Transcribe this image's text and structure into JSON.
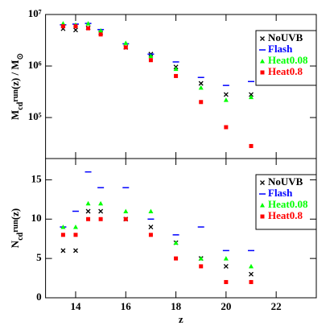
{
  "chart_data": [
    {
      "type": "scatter",
      "log_y": true,
      "ylabel": [
        {
          "text": "M"
        },
        {
          "text": "cd",
          "shift": "sub"
        },
        {
          "text": "run",
          "shift": "sup"
        },
        {
          "text": "(z) / M"
        },
        {
          "text": "⊙",
          "shift": "sub"
        }
      ],
      "x": [
        13.5,
        14,
        14.5,
        15,
        16,
        17,
        18,
        19,
        20,
        21
      ],
      "xlim": [
        12.8,
        23.6
      ],
      "xticks": [
        14,
        16,
        18,
        20,
        22
      ],
      "ylim": [
        16000,
        10000000
      ],
      "yticks": [
        {
          "value": 100000,
          "label": "10⁵"
        },
        {
          "value": 1000000,
          "label": "10⁶"
        },
        {
          "value": 10000000,
          "label": "10⁷"
        }
      ],
      "legend": "upper right",
      "series": [
        {
          "name": "NoUVB",
          "color": "#000000",
          "marker": "cross",
          "values": [
            5300000,
            5000000,
            5500000,
            4400000,
            2300000,
            1700000,
            960000,
            460000,
            280000,
            280000
          ]
        },
        {
          "name": "Flash",
          "color": "#0000ff",
          "marker": "dash",
          "values": [
            6300000,
            6500000,
            6700000,
            5100000,
            2700000,
            1700000,
            1200000,
            600000,
            420000,
            500000
          ]
        },
        {
          "name": "Heat0.08",
          "color": "#00ff00",
          "marker": "triangle",
          "values": [
            6700000,
            6300000,
            6700000,
            4900000,
            2800000,
            1560000,
            880000,
            380000,
            220000,
            250000
          ]
        },
        {
          "name": "Heat0.8",
          "color": "#ff0000",
          "marker": "square",
          "values": [
            5900000,
            5900000,
            5400000,
            4100000,
            2300000,
            1300000,
            640000,
            200000,
            65000,
            28000
          ]
        }
      ]
    },
    {
      "type": "scatter",
      "log_y": false,
      "ylabel": [
        {
          "text": "N"
        },
        {
          "text": "cd",
          "shift": "sub"
        },
        {
          "text": "run",
          "shift": "sup"
        },
        {
          "text": "(z)"
        }
      ],
      "xlabel": "z",
      "x": [
        13.5,
        14,
        14.5,
        15,
        16,
        17,
        18,
        19,
        20,
        21
      ],
      "xlim": [
        12.8,
        23.6
      ],
      "xticks": [
        14,
        16,
        18,
        20,
        22
      ],
      "ylim": [
        0,
        17.7
      ],
      "yticks": [
        0,
        5,
        10,
        15
      ],
      "legend": "upper right",
      "series": [
        {
          "name": "NoUVB",
          "color": "#000000",
          "marker": "cross",
          "values": [
            6,
            6,
            11,
            11,
            10,
            9,
            7,
            5,
            4,
            3
          ]
        },
        {
          "name": "Flash",
          "color": "#0000ff",
          "marker": "dash",
          "values": [
            9,
            11,
            16,
            14,
            14,
            10,
            8,
            9,
            6,
            6
          ]
        },
        {
          "name": "Heat0.08",
          "color": "#00ff00",
          "marker": "triangle",
          "values": [
            9,
            9,
            12,
            12,
            11,
            11,
            7,
            5,
            5,
            4
          ]
        },
        {
          "name": "Heat0.8",
          "color": "#ff0000",
          "marker": "square",
          "values": [
            8,
            8,
            10,
            10,
            10,
            8,
            5,
            4,
            2,
            2
          ]
        }
      ]
    }
  ]
}
